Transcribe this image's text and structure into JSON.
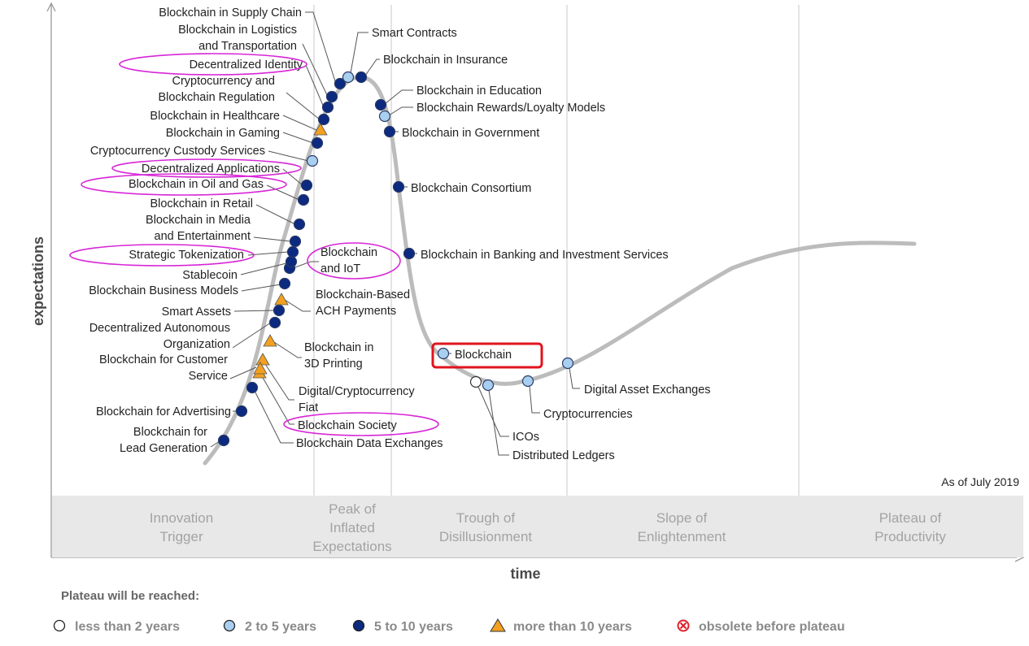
{
  "chart_data": {
    "type": "hype-cycle",
    "xlabel": "time",
    "ylabel": "expectations",
    "as_of": "As of July 2019",
    "phases": [
      "Innovation Trigger",
      "Peak of Inflated Expectations",
      "Trough of Disillusionment",
      "Slope of Enlightenment",
      "Plateau of Productivity"
    ],
    "legend": {
      "title": "Plateau will be reached:",
      "items": [
        {
          "key": "lt2",
          "label": "less than 2 years",
          "color": "#ffffff"
        },
        {
          "key": "2to5",
          "label": "2 to 5 years",
          "color": "#a9cff0"
        },
        {
          "key": "5to10",
          "label": "5 to 10 years",
          "color": "#0b2a80"
        },
        {
          "key": "gt10",
          "label": "more than 10 years",
          "color": "#f2a020"
        },
        {
          "key": "obsolete",
          "label": "obsolete before plateau",
          "color": "#e0202a"
        }
      ]
    },
    "technologies": [
      {
        "name": "Blockchain for Lead Generation",
        "category": "5to10",
        "phase": "Innovation Trigger"
      },
      {
        "name": "Blockchain for Advertising",
        "category": "5to10",
        "phase": "Innovation Trigger"
      },
      {
        "name": "Blockchain Data Exchanges",
        "category": "5to10",
        "phase": "Innovation Trigger"
      },
      {
        "name": "Blockchain Society",
        "category": "gt10",
        "phase": "Innovation Trigger",
        "highlighted": true
      },
      {
        "name": "Digital/Cryptocurrency Fiat",
        "category": "gt10",
        "phase": "Innovation Trigger"
      },
      {
        "name": "Blockchain for Customer Service",
        "category": "gt10",
        "phase": "Innovation Trigger"
      },
      {
        "name": "Blockchain in 3D Printing",
        "category": "gt10",
        "phase": "Innovation Trigger"
      },
      {
        "name": "Decentralized Autonomous Organization",
        "category": "5to10",
        "phase": "Innovation Trigger"
      },
      {
        "name": "Smart Assets",
        "category": "5to10",
        "phase": "Innovation Trigger"
      },
      {
        "name": "Blockchain-Based ACH Payments",
        "category": "gt10",
        "phase": "Innovation Trigger"
      },
      {
        "name": "Blockchain Business Models",
        "category": "5to10",
        "phase": "Innovation Trigger"
      },
      {
        "name": "Blockchain and IoT",
        "category": "5to10",
        "phase": "Innovation Trigger",
        "highlighted": true
      },
      {
        "name": "Stablecoin",
        "category": "5to10",
        "phase": "Innovation Trigger"
      },
      {
        "name": "Strategic Tokenization",
        "category": "5to10",
        "phase": "Innovation Trigger",
        "highlighted": true
      },
      {
        "name": "Blockchain in Media and Entertainment",
        "category": "5to10",
        "phase": "Innovation Trigger"
      },
      {
        "name": "Blockchain in Retail",
        "category": "5to10",
        "phase": "Innovation Trigger"
      },
      {
        "name": "Blockchain in Oil and Gas",
        "category": "5to10",
        "phase": "Innovation Trigger",
        "highlighted": true
      },
      {
        "name": "Decentralized Applications",
        "category": "5to10",
        "phase": "Innovation Trigger",
        "highlighted": true
      },
      {
        "name": "Cryptocurrency Custody Services",
        "category": "2to5",
        "phase": "Innovation Trigger"
      },
      {
        "name": "Blockchain in Gaming",
        "category": "5to10",
        "phase": "Innovation Trigger"
      },
      {
        "name": "Blockchain in Healthcare",
        "category": "gt10",
        "phase": "Innovation Trigger"
      },
      {
        "name": "Cryptocurrency and Blockchain Regulation",
        "category": "5to10",
        "phase": "Innovation Trigger"
      },
      {
        "name": "Decentralized Identity",
        "category": "5to10",
        "phase": "Innovation Trigger",
        "highlighted": true
      },
      {
        "name": "Blockchain in Logistics and Transportation",
        "category": "5to10",
        "phase": "Innovation Trigger"
      },
      {
        "name": "Blockchain in Supply Chain",
        "category": "5to10",
        "phase": "Peak of Inflated Expectations"
      },
      {
        "name": "Smart Contracts",
        "category": "2to5",
        "phase": "Peak of Inflated Expectations"
      },
      {
        "name": "Blockchain in Insurance",
        "category": "5to10",
        "phase": "Peak of Inflated Expectations"
      },
      {
        "name": "Blockchain in Education",
        "category": "5to10",
        "phase": "Peak of Inflated Expectations"
      },
      {
        "name": "Blockchain Rewards/Loyalty Models",
        "category": "2to5",
        "phase": "Peak of Inflated Expectations"
      },
      {
        "name": "Blockchain in Government",
        "category": "5to10",
        "phase": "Trough of Disillusionment"
      },
      {
        "name": "Blockchain Consortium",
        "category": "5to10",
        "phase": "Trough of Disillusionment"
      },
      {
        "name": "Blockchain in Banking and Investment Services",
        "category": "5to10",
        "phase": "Trough of Disillusionment"
      },
      {
        "name": "Blockchain",
        "category": "2to5",
        "phase": "Trough of Disillusionment",
        "highlighted": true
      },
      {
        "name": "ICOs",
        "category": "lt2",
        "phase": "Trough of Disillusionment"
      },
      {
        "name": "Distributed Ledgers",
        "category": "2to5",
        "phase": "Trough of Disillusionment"
      },
      {
        "name": "Cryptocurrencies",
        "category": "2to5",
        "phase": "Trough of Disillusionment"
      },
      {
        "name": "Digital Asset Exchanges",
        "category": "2to5",
        "phase": "Slope of Enlightenment"
      }
    ]
  }
}
